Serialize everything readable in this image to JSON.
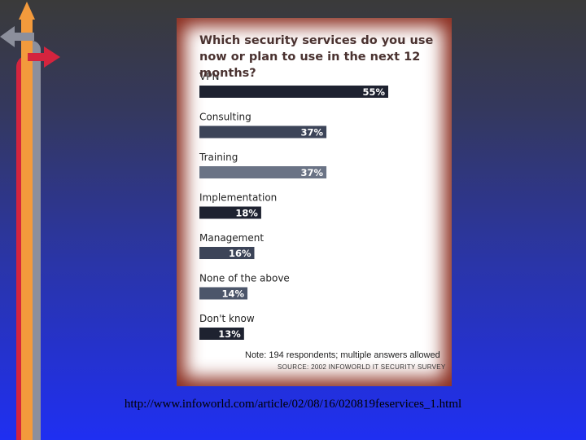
{
  "chart_data": {
    "type": "bar",
    "title": "Which security services do you use now or plan to use in the next 12 months?",
    "categories": [
      "VPN",
      "Consulting",
      "Training",
      "Implementation",
      "Management",
      "None of the above",
      "Don't know"
    ],
    "values": [
      55,
      37,
      37,
      18,
      16,
      14,
      13
    ],
    "value_labels": [
      "55%",
      "37%",
      "37%",
      "18%",
      "16%",
      "14%",
      "13%"
    ],
    "unit": "%",
    "orientation": "horizontal",
    "bar_colors": [
      "#1e2230",
      "#3c4458",
      "#6a7385",
      "#1e2230",
      "#3c4458",
      "#4c566a",
      "#1e2230"
    ],
    "note": "Note: 194 respondents; multiple answers allowed",
    "source": "SOURCE: 2002 INFOWORLD IT SECURITY SURVEY"
  },
  "footer": {
    "url_text": "http://www.infoworld.com/article/02/08/16/020819feservices_1.html"
  }
}
